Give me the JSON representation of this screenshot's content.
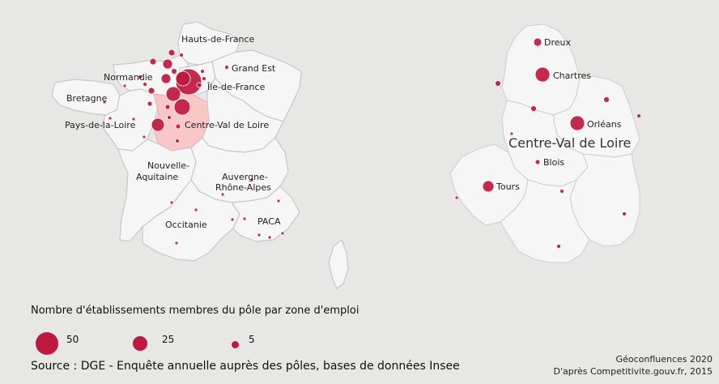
{
  "france_labels": {
    "hauts_de_france": "Hauts-de-France",
    "grand_est": "Grand Est",
    "normandie": "Normandie",
    "ile_de_france": "Île-de-France",
    "bretagne": "Bretagne",
    "pays_de_la_loire": "Pays-de-la-Loire",
    "centre_val_de_loire": "Centre-Val de Loire",
    "nouvelle_aquitaine_1": "Nouvelle-",
    "nouvelle_aquitaine_2": "Aquitaine",
    "auvergne_1": "Auvergne-",
    "auvergne_2": "Rhône-Alpes",
    "occitanie": "Occitanie",
    "paca": "PACA"
  },
  "cvl_labels": {
    "region": "Centre-Val de Loire",
    "dreux": "Dreux",
    "chartres": "Chartres",
    "orleans": "Orléans",
    "blois": "Blois",
    "tours": "Tours"
  },
  "legend": {
    "title": "Nombre d'établissements membres du pôle par zone d'emploi",
    "items": [
      {
        "value": 50,
        "label": "50"
      },
      {
        "value": 25,
        "label": "25"
      },
      {
        "value": 5,
        "label": "5"
      }
    ]
  },
  "source": "Source : DGE - Enquête annuelle auprès des pôles, bases de données Insee",
  "credit": {
    "line1": "Géoconfluences 2020",
    "line2": "D'après Competitivite.gouv.fr, 2015"
  },
  "colors": {
    "bubble": "#c0183f",
    "highlight_region": "#f9c7c5",
    "land": "#f6f6f6",
    "background": "#e7e7e5"
  }
}
